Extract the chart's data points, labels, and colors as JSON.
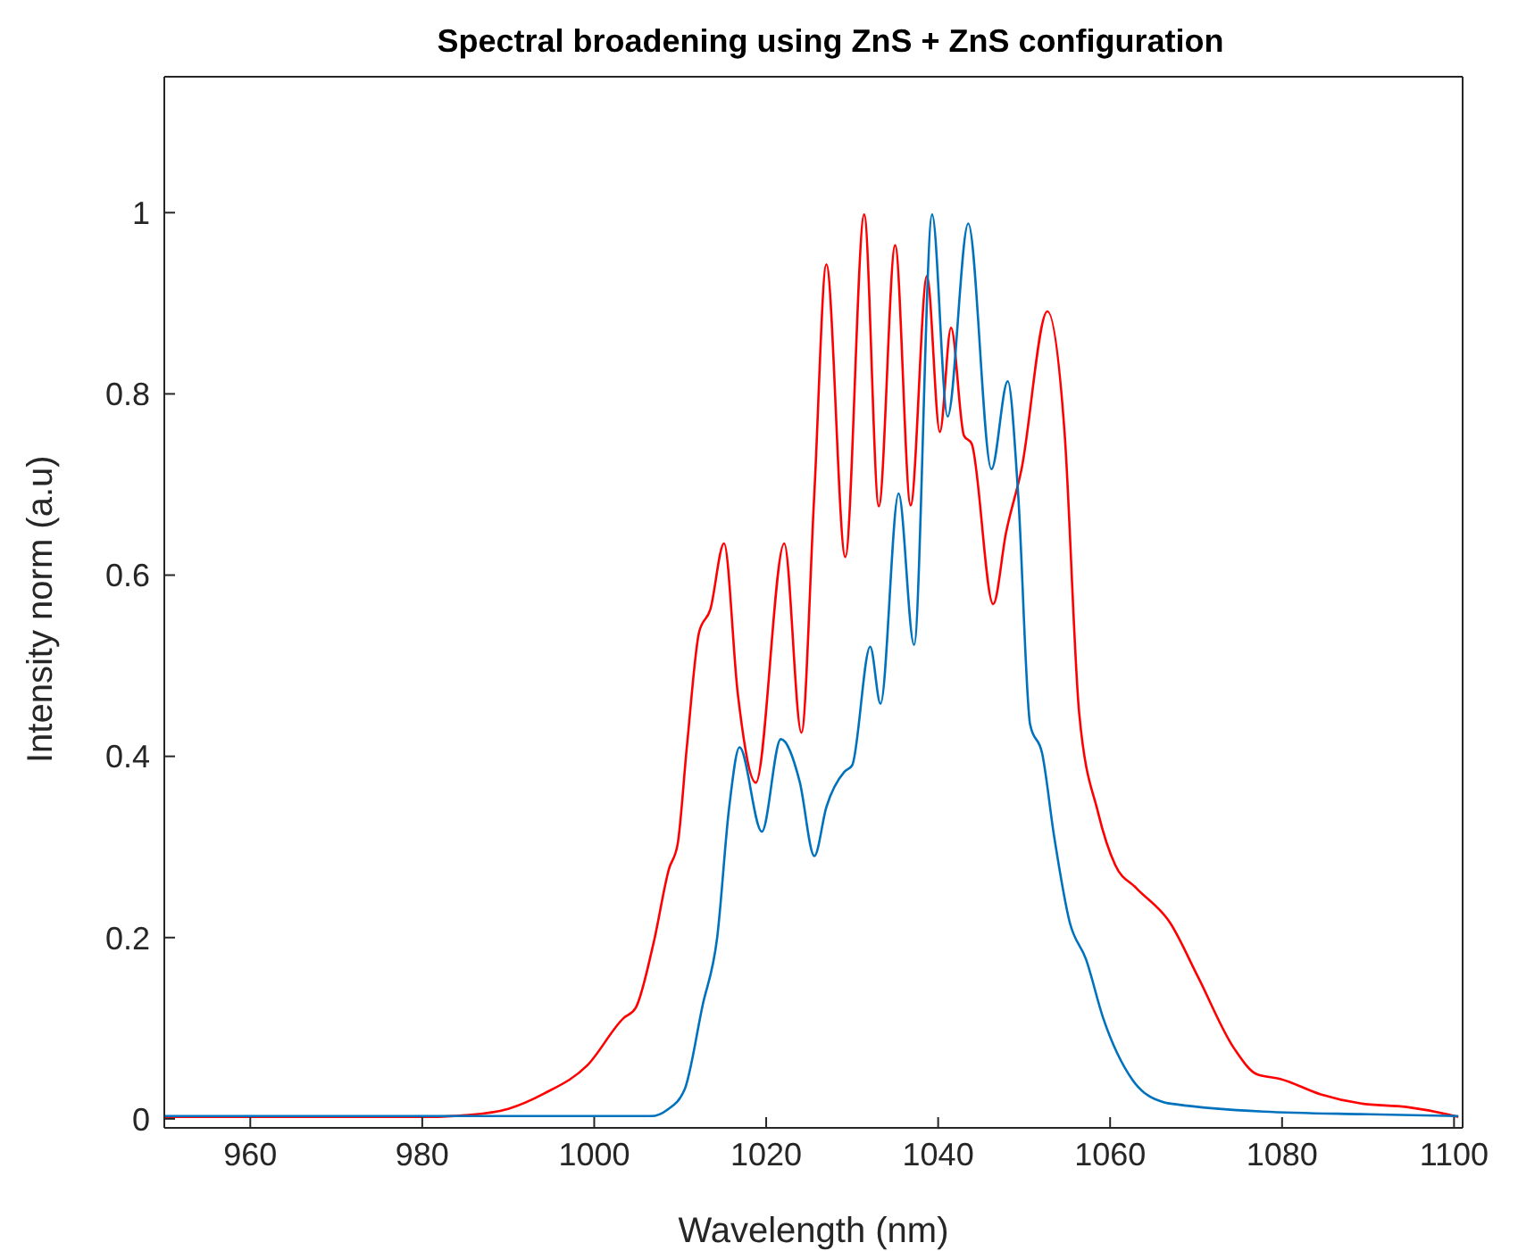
{
  "chart_data": {
    "type": "line",
    "title": "Spectral broadening using ZnS + ZnS configuration",
    "xlabel": "Wavelength (nm)",
    "ylabel": "Intensity norm (a.u)",
    "xlim": [
      950,
      1101
    ],
    "xticks": [
      960,
      980,
      1000,
      1020,
      1040,
      1060,
      1080,
      1100
    ],
    "ylim": [
      -0.01,
      1.15
    ],
    "yticks": [
      0,
      0.2,
      0.4,
      0.6,
      0.8,
      1
    ],
    "marker": "none",
    "line_style": "solid",
    "series": [
      {
        "color": "#ff0000",
        "x": [
          950,
          960,
          970,
          980,
          985,
          990,
          994.2,
          999.2,
          1003.4,
          1004.8,
          1006.9,
          1008.7,
          1009.7,
          1010.8,
          1012.2,
          1013.5,
          1015.1,
          1016.7,
          1018.8,
          1022.1,
          1024.1,
          1025.6,
          1027,
          1029.2,
          1031.4,
          1033.1,
          1035,
          1036.8,
          1038.7,
          1040.2,
          1041.5,
          1043,
          1043.9,
          1046.4,
          1047.9,
          1049.7,
          1052.7,
          1054.7,
          1056.4,
          1058.6,
          1060.6,
          1063,
          1067,
          1070.2,
          1074.4,
          1077.1,
          1079.8,
          1084.5,
          1089.1,
          1094.5,
          1099.2,
          1100.5
        ],
        "values": [
          0.002,
          0.002,
          0.002,
          0.002,
          0.004,
          0.011,
          0.028,
          0.059,
          0.111,
          0.122,
          0.194,
          0.276,
          0.303,
          0.413,
          0.537,
          0.562,
          0.635,
          0.469,
          0.371,
          0.635,
          0.426,
          0.69,
          0.943,
          0.62,
          0.998,
          0.676,
          0.964,
          0.677,
          0.93,
          0.758,
          0.873,
          0.754,
          0.745,
          0.568,
          0.647,
          0.717,
          0.891,
          0.758,
          0.448,
          0.338,
          0.28,
          0.255,
          0.216,
          0.157,
          0.078,
          0.049,
          0.044,
          0.027,
          0.017,
          0.013,
          0.005,
          0.002
        ]
      },
      {
        "color": "#0072bd",
        "x": [
          950,
          970,
          990,
          1006.6,
          1008.5,
          1010.5,
          1012.6,
          1014.3,
          1015.7,
          1016.9,
          1019.5,
          1021.7,
          1023.9,
          1025.6,
          1027,
          1029.1,
          1030,
          1032.1,
          1033.3,
          1035.4,
          1037.2,
          1039.3,
          1041.1,
          1043.5,
          1046.2,
          1048.1,
          1049.3,
          1050.7,
          1052.1,
          1053.5,
          1055.3,
          1057.2,
          1059.2,
          1062.6,
          1066.3,
          1067.7,
          1077.8,
          1090,
          1100.5
        ],
        "values": [
          0.003,
          0.003,
          0.003,
          0.003,
          0.01,
          0.032,
          0.125,
          0.2,
          0.344,
          0.41,
          0.317,
          0.419,
          0.372,
          0.29,
          0.344,
          0.383,
          0.39,
          0.521,
          0.458,
          0.69,
          0.523,
          0.998,
          0.775,
          0.988,
          0.717,
          0.814,
          0.69,
          0.435,
          0.403,
          0.311,
          0.217,
          0.176,
          0.111,
          0.043,
          0.018,
          0.016,
          0.008,
          0.005,
          0.003
        ]
      }
    ]
  }
}
